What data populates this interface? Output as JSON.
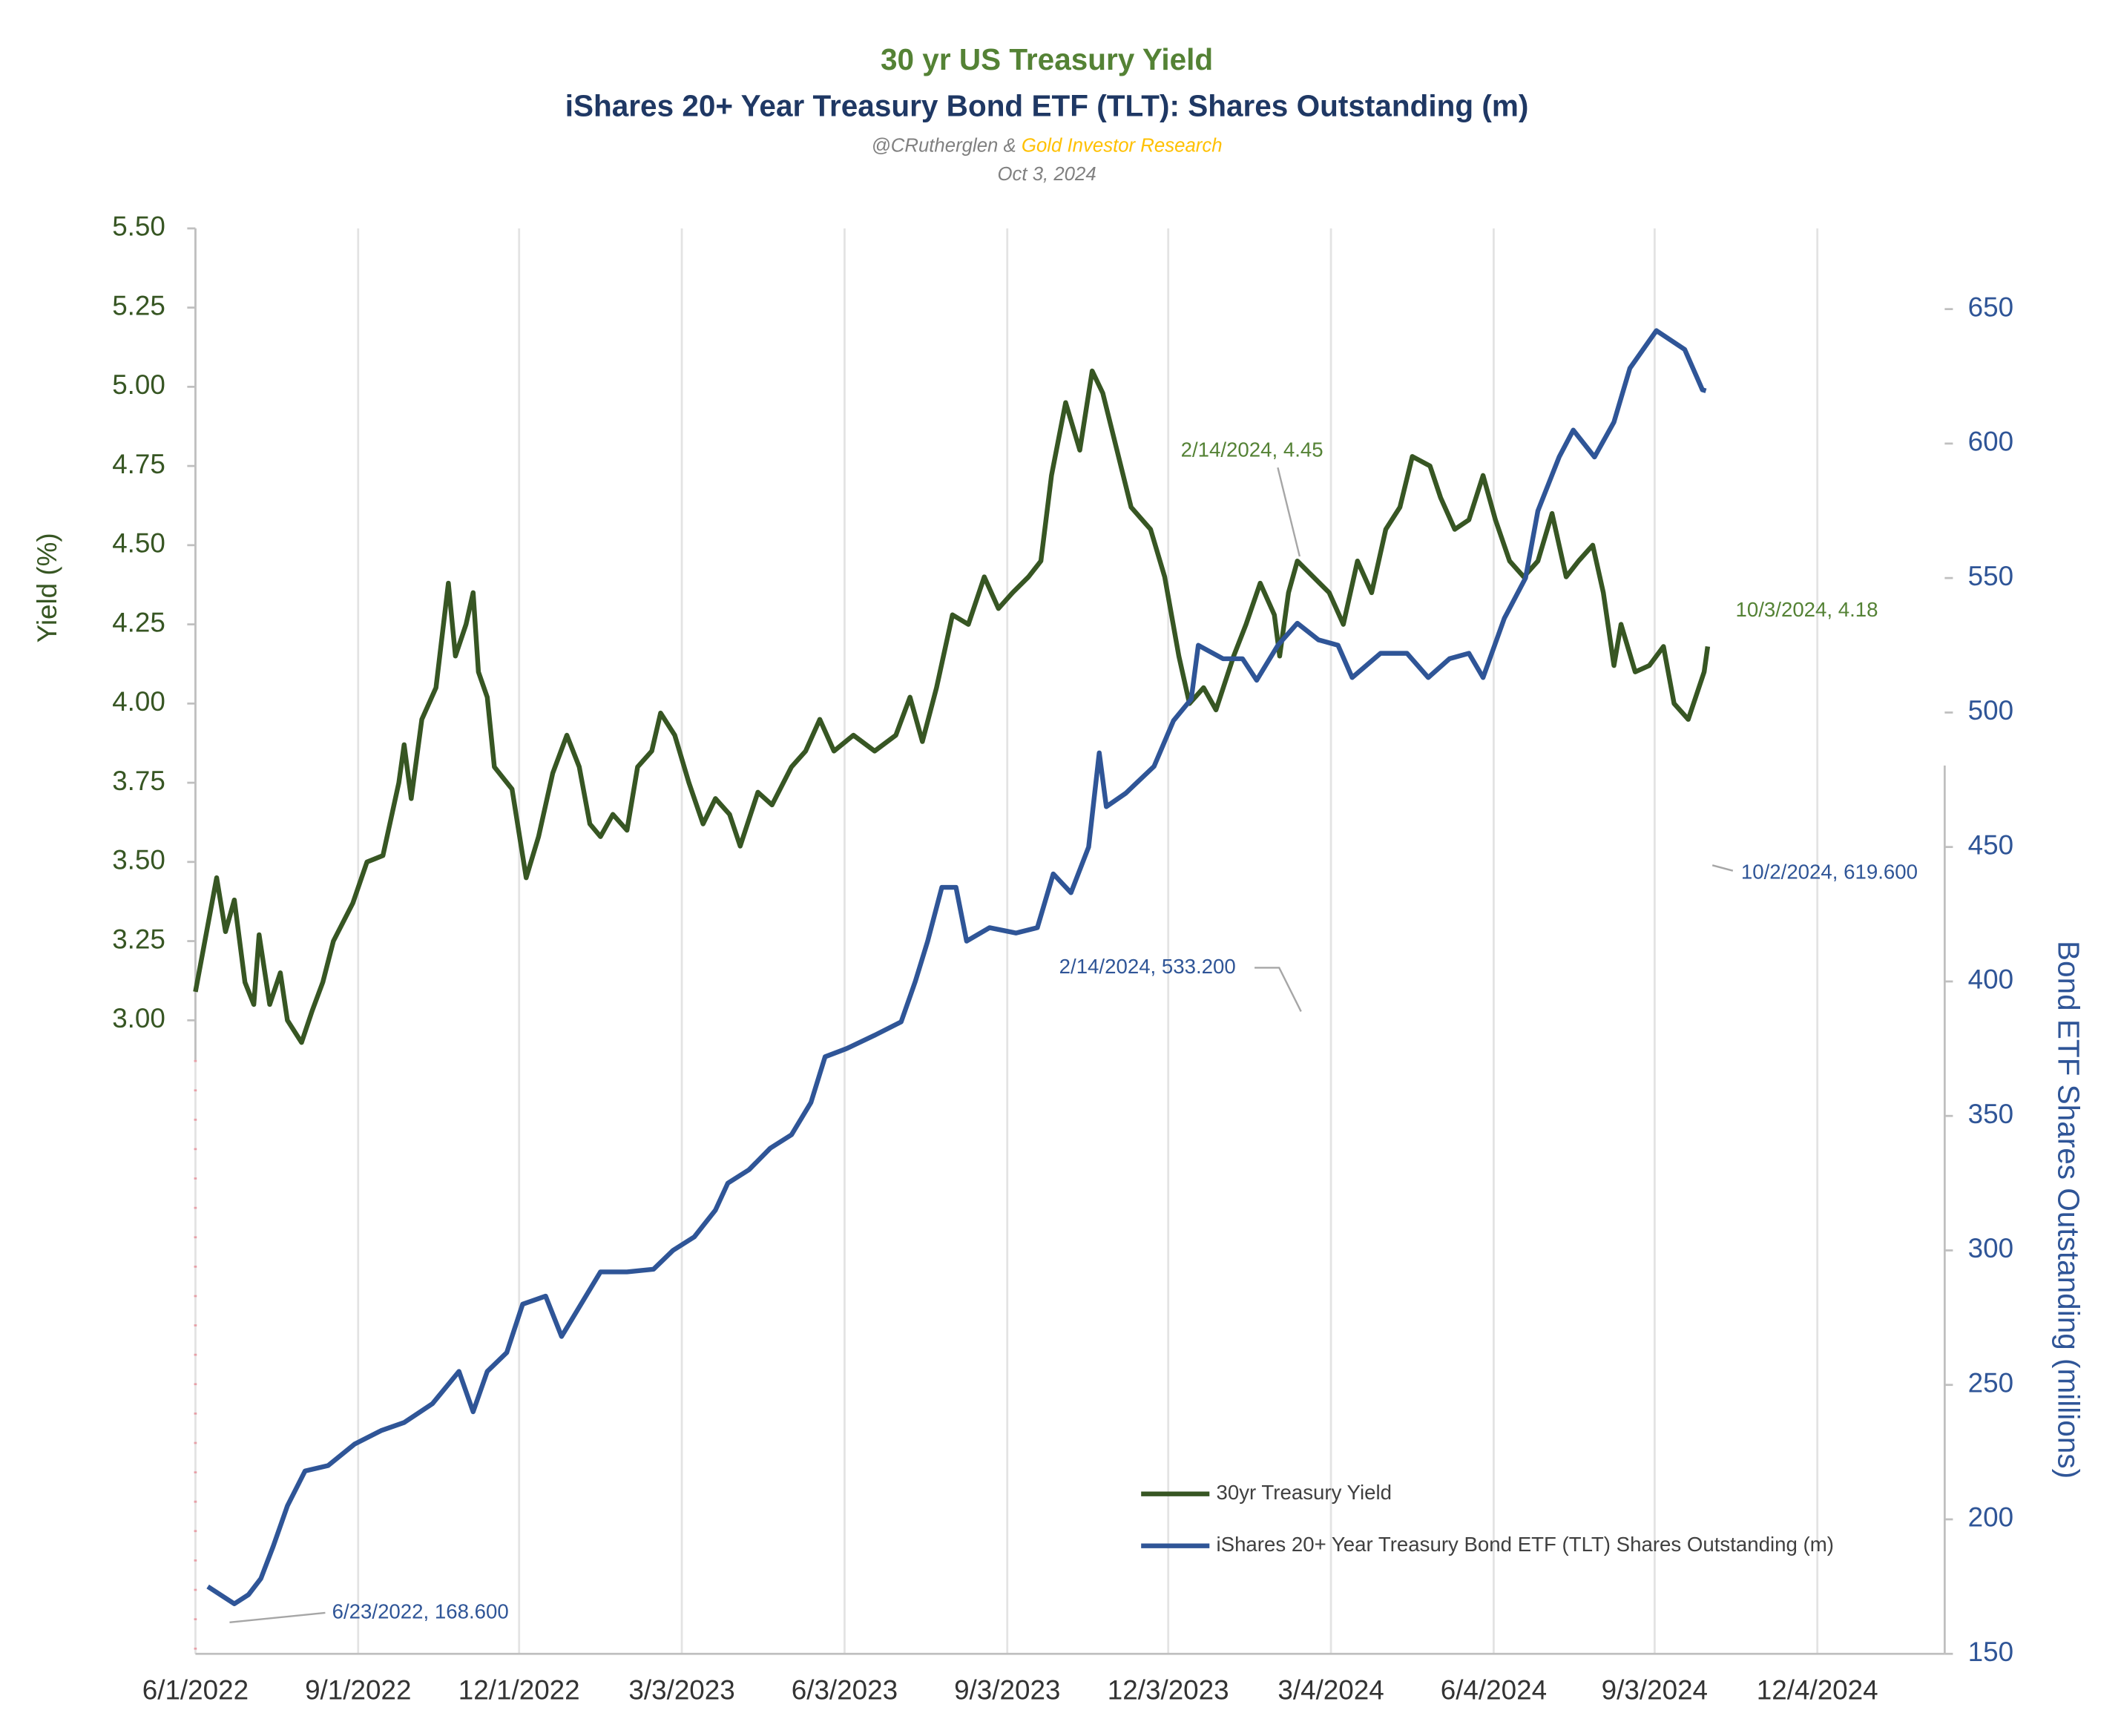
{
  "chart_data": {
    "type": "line",
    "title": "30 yr US Treasury Yield",
    "subtitle": "iShares 20+ Year Treasury Bond ETF (TLT): Shares Outstanding (m)",
    "byline": "@CRutherglen &",
    "byline_org": "Gold Investor Research",
    "date": "Oct 3, 2024",
    "ylabel": "Yield (%)",
    "y2label": "Bond ETF Shares Outstanding (millions)",
    "xlim": [
      "6/1/2022",
      "2/14/2025"
    ],
    "xticks": [
      "6/1/2022",
      "9/1/2022",
      "12/1/2022",
      "3/3/2023",
      "6/3/2023",
      "9/3/2023",
      "12/3/2023",
      "3/4/2024",
      "6/4/2024",
      "9/3/2024",
      "12/4/2024"
    ],
    "ylim": [
      1,
      5.5
    ],
    "yticks": [
      {
        "value": 3,
        "label": "3.00"
      },
      {
        "value": 3.25,
        "label": "3.25"
      },
      {
        "value": 3.5,
        "label": "3.50"
      },
      {
        "value": 3.75,
        "label": "3.75"
      },
      {
        "value": 4,
        "label": "4.00"
      },
      {
        "value": 4.25,
        "label": "4.25"
      },
      {
        "value": 4.5,
        "label": "4.50"
      },
      {
        "value": 4.75,
        "label": "4.75"
      },
      {
        "value": 5,
        "label": "5.00"
      },
      {
        "value": 5.25,
        "label": "5.25"
      },
      {
        "value": 5.5,
        "label": "5.50"
      }
    ],
    "y2lim": [
      150,
      680
    ],
    "y2ticks": [
      150,
      200,
      250,
      300,
      350,
      400,
      450,
      500,
      550,
      600,
      650
    ],
    "grid": true,
    "legend": "bottom",
    "series": [
      {
        "name": "30yr Treasury Yield",
        "color": "#375623",
        "x": [
          "6/1/2022",
          "6/13/2022",
          "6/18/2022",
          "6/23/2022",
          "6/29/2022",
          "7/4/2022",
          "7/7/2022",
          "7/13/2022",
          "7/19/2022",
          "7/23/2022",
          "7/31/2022",
          "8/6/2022",
          "8/12/2022",
          "8/18/2022",
          "8/29/2022",
          "9/6/2022",
          "9/15/2022",
          "9/24/2022",
          "9/27/2022",
          "10/1/2022",
          "10/7/2022",
          "10/15/2022",
          "10/22/2022",
          "10/26/2022",
          "11/1/2022",
          "11/5/2022",
          "11/8/2022",
          "11/13/2022",
          "11/17/2022",
          "11/27/2022",
          "12/5/2022",
          "12/12/2022",
          "12/20/2022",
          "12/28/2022",
          "1/4/2023",
          "1/10/2023",
          "1/16/2023",
          "1/23/2023",
          "1/31/2023",
          "2/6/2023",
          "2/14/2023",
          "2/19/2023",
          "2/27/2023",
          "3/7/2023",
          "3/15/2023",
          "3/22/2023",
          "3/30/2023",
          "4/5/2023",
          "4/15/2023",
          "4/23/2023",
          "5/4/2023",
          "5/12/2023",
          "5/20/2023",
          "5/28/2023",
          "6/8/2023",
          "6/20/2023",
          "7/2/2023",
          "7/10/2023",
          "7/17/2023",
          "7/25/2023",
          "8/3/2023",
          "8/12/2023",
          "8/21/2023",
          "8/29/2023",
          "9/6/2023",
          "9/15/2023",
          "9/22/2023",
          "9/28/2023",
          "10/6/2023",
          "10/14/2023",
          "10/21/2023",
          "10/27/2023",
          "11/4/2023",
          "11/12/2023",
          "11/23/2023",
          "12/1/2023",
          "12/9/2023",
          "12/15/2023",
          "12/23/2023",
          "12/30/2023",
          "1/9/2024",
          "1/16/2024",
          "1/24/2024",
          "2/1/2024",
          "2/4/2024",
          "2/9/2024",
          "2/14/2024",
          "2/23/2024",
          "3/3/2024",
          "3/11/2024",
          "3/19/2024",
          "3/27/2024",
          "4/4/2024",
          "4/12/2024",
          "4/19/2024",
          "4/29/2024",
          "5/5/2024",
          "5/13/2024",
          "5/21/2024",
          "5/29/2024",
          "6/5/2024",
          "6/13/2024",
          "6/21/2024",
          "6/29/2024",
          "7/7/2024",
          "7/15/2024",
          "7/22/2024",
          "7/30/2024",
          "8/5/2024",
          "8/11/2024",
          "8/15/2024",
          "8/23/2024",
          "8/31/2024",
          "9/8/2024",
          "9/14/2024",
          "9/22/2024",
          "9/28/2024",
          "10/1/2024",
          "10/3/2024"
        ],
        "values": [
          3.09,
          3.45,
          3.28,
          3.38,
          3.12,
          3.05,
          3.27,
          3.05,
          3.15,
          3.0,
          2.93,
          3.03,
          3.12,
          3.25,
          3.37,
          3.5,
          3.52,
          3.75,
          3.87,
          3.7,
          3.95,
          4.05,
          4.38,
          4.15,
          4.25,
          4.35,
          4.1,
          4.02,
          3.8,
          3.73,
          3.45,
          3.58,
          3.78,
          3.9,
          3.8,
          3.62,
          3.58,
          3.65,
          3.6,
          3.8,
          3.85,
          3.97,
          3.9,
          3.75,
          3.62,
          3.7,
          3.65,
          3.55,
          3.72,
          3.68,
          3.8,
          3.85,
          3.95,
          3.85,
          3.9,
          3.85,
          3.9,
          4.02,
          3.88,
          4.05,
          4.28,
          4.25,
          4.4,
          4.3,
          4.35,
          4.4,
          4.45,
          4.72,
          4.95,
          4.8,
          5.05,
          4.98,
          4.8,
          4.62,
          4.55,
          4.4,
          4.15,
          4.0,
          4.05,
          3.98,
          4.15,
          4.25,
          4.38,
          4.28,
          4.15,
          4.35,
          4.45,
          4.4,
          4.35,
          4.25,
          4.45,
          4.35,
          4.55,
          4.62,
          4.78,
          4.75,
          4.65,
          4.55,
          4.58,
          4.72,
          4.58,
          4.45,
          4.4,
          4.45,
          4.6,
          4.4,
          4.45,
          4.5,
          4.35,
          4.12,
          4.25,
          4.1,
          4.12,
          4.18,
          4.0,
          3.95,
          4.05,
          4.1,
          4.18
        ]
      },
      {
        "name": "iShares 20+ Year Treasury Bond ETF (TLT) Shares Outstanding (m)",
        "color": "#2f5597",
        "axis": "y2",
        "x": [
          "6/8/2022",
          "6/23/2022",
          "7/1/2022",
          "7/8/2022",
          "7/15/2022",
          "7/23/2022",
          "8/2/2022",
          "8/15/2022",
          "8/30/2022",
          "9/14/2022",
          "9/27/2022",
          "10/13/2022",
          "10/28/2022",
          "11/5/2022",
          "11/13/2022",
          "11/24/2022",
          "12/3/2022",
          "12/16/2022",
          "12/25/2022",
          "1/5/2023",
          "1/16/2023",
          "1/31/2023",
          "2/15/2023",
          "2/26/2023",
          "3/10/2023",
          "3/22/2023",
          "3/29/2023",
          "4/10/2023",
          "4/22/2023",
          "5/4/2023",
          "5/15/2023",
          "5/23/2023",
          "6/4/2023",
          "6/20/2023",
          "7/5/2023",
          "7/13/2023",
          "7/20/2023",
          "7/28/2023",
          "8/5/2023",
          "8/11/2023",
          "8/24/2023",
          "9/8/2023",
          "9/20/2023",
          "9/29/2023",
          "10/9/2023",
          "10/19/2023",
          "10/25/2023",
          "10/29/2023",
          "11/9/2023",
          "11/25/2023",
          "12/6/2023",
          "12/16/2023",
          "12/20/2023",
          "1/3/2024",
          "1/14/2024",
          "1/22/2024",
          "2/3/2024",
          "2/14/2024",
          "2/26/2024",
          "3/8/2024",
          "3/16/2024",
          "4/1/2024",
          "4/16/2024",
          "4/28/2024",
          "5/10/2024",
          "5/21/2024",
          "5/29/2024",
          "6/10/2024",
          "6/22/2024",
          "6/29/2024",
          "7/11/2024",
          "7/19/2024",
          "7/31/2024",
          "8/11/2024",
          "8/20/2024",
          "9/4/2024",
          "9/20/2024",
          "9/30/2024",
          "10/2/2024"
        ],
        "values": [
          175,
          168.6,
          172,
          178,
          190,
          205,
          218,
          220,
          228,
          233,
          236,
          243,
          255,
          240,
          255,
          262,
          280,
          283,
          268,
          280,
          292,
          292,
          293,
          300,
          305,
          315,
          325,
          330,
          338,
          343,
          355,
          372,
          375,
          380,
          385,
          400,
          415,
          435,
          435,
          415,
          420,
          418,
          420,
          440,
          433,
          450,
          485,
          465,
          470,
          480,
          497,
          505,
          525,
          520,
          520,
          512,
          525,
          533.2,
          527,
          525,
          513,
          522,
          522,
          513,
          520,
          522,
          513,
          535,
          550,
          575,
          595,
          605,
          595,
          608,
          628,
          642,
          635,
          620,
          619.6
        ]
      }
    ],
    "annotations": [
      {
        "text": "2/14/2024, 4.45"
      },
      {
        "text": "10/3/2024, 4.18"
      },
      {
        "text": "2/14/2024, 533.200"
      },
      {
        "text": "10/2/2024, 619.600"
      },
      {
        "text": "6/23/2022, 168.600"
      }
    ]
  }
}
